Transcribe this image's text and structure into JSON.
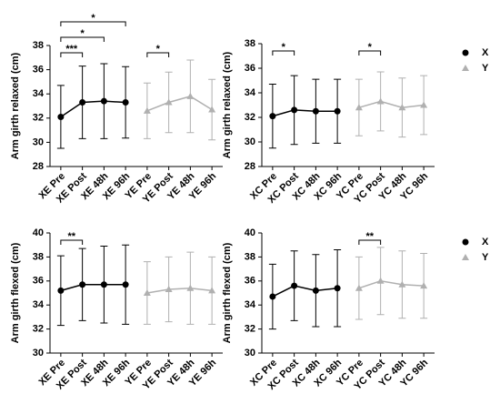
{
  "chart_data": [
    {
      "type": "line",
      "ylabel": "Arm girth relaxed (cm)",
      "categories": [
        "XE Pre",
        "XE Post",
        "XE 48h",
        "XE 96h",
        "YE Pre",
        "YE Post",
        "YE 48h",
        "YE 96h"
      ],
      "ylim": [
        28,
        38
      ],
      "yticks": [
        28,
        30,
        32,
        34,
        36,
        38
      ],
      "series": [
        {
          "name": "X",
          "color": "#000000",
          "marker": "circle",
          "values": [
            32.1,
            33.3,
            33.4,
            33.3,
            null,
            null,
            null,
            null
          ],
          "errors": [
            2.6,
            3.0,
            3.1,
            2.95,
            null,
            null,
            null,
            null
          ]
        },
        {
          "name": "Y",
          "color": "#b0b0b0",
          "marker": "triangle",
          "values": [
            null,
            null,
            null,
            null,
            32.6,
            33.3,
            33.8,
            32.7
          ],
          "errors": [
            null,
            null,
            null,
            null,
            2.3,
            2.5,
            3.0,
            2.5
          ]
        }
      ],
      "annotations": [
        {
          "text": "***",
          "between": [
            "XE Pre",
            "XE Post"
          ]
        },
        {
          "text": "*",
          "between": [
            "XE Pre",
            "XE 48h"
          ]
        },
        {
          "text": "*",
          "between": [
            "XE Pre",
            "XE 96h"
          ]
        },
        {
          "text": "*",
          "between": [
            "YE Pre",
            "YE Post"
          ]
        }
      ],
      "legend": false
    },
    {
      "type": "line",
      "ylabel": "Arm girth relaxed (cm)",
      "categories": [
        "XC Pre",
        "XC Post",
        "XC 48h",
        "XC 96h",
        "YC Pre",
        "YC Post",
        "YC 48h",
        "YC 96h"
      ],
      "ylim": [
        28,
        38
      ],
      "yticks": [
        28,
        30,
        32,
        34,
        36,
        38
      ],
      "series": [
        {
          "name": "X",
          "color": "#000000",
          "marker": "circle",
          "values": [
            32.1,
            32.6,
            32.5,
            32.5,
            null,
            null,
            null,
            null
          ],
          "errors": [
            2.6,
            2.8,
            2.6,
            2.6,
            null,
            null,
            null,
            null
          ]
        },
        {
          "name": "Y",
          "color": "#b0b0b0",
          "marker": "triangle",
          "values": [
            null,
            null,
            null,
            null,
            32.8,
            33.3,
            32.8,
            33.0
          ],
          "errors": [
            null,
            null,
            null,
            null,
            2.3,
            2.4,
            2.4,
            2.4
          ]
        }
      ],
      "annotations": [
        {
          "text": "*",
          "between": [
            "XC Pre",
            "XC Post"
          ]
        },
        {
          "text": "*",
          "between": [
            "YC Pre",
            "YC Post"
          ]
        }
      ],
      "legend": true
    },
    {
      "type": "line",
      "ylabel": "Arm girth flexed (cm)",
      "categories": [
        "XE Pre",
        "XE Post",
        "XE 48h",
        "XE 96h",
        "YE Pre",
        "YE Post",
        "YE 48h",
        "YE 96h"
      ],
      "ylim": [
        30,
        40
      ],
      "yticks": [
        30,
        32,
        34,
        36,
        38,
        40
      ],
      "series": [
        {
          "name": "X",
          "color": "#000000",
          "marker": "circle",
          "values": [
            35.2,
            35.7,
            35.7,
            35.7,
            null,
            null,
            null,
            null
          ],
          "errors": [
            2.9,
            3.0,
            3.2,
            3.3,
            null,
            null,
            null,
            null
          ]
        },
        {
          "name": "Y",
          "color": "#b0b0b0",
          "marker": "triangle",
          "values": [
            null,
            null,
            null,
            null,
            35.0,
            35.3,
            35.4,
            35.2
          ],
          "errors": [
            null,
            null,
            null,
            null,
            2.6,
            2.7,
            3.0,
            2.8
          ]
        }
      ],
      "annotations": [
        {
          "text": "**",
          "between": [
            "XE Pre",
            "XE Post"
          ]
        }
      ],
      "legend": false
    },
    {
      "type": "line",
      "ylabel": "Arm girth flexed (cm)",
      "categories": [
        "XC Pre",
        "XC Post",
        "XC 48h",
        "XC 96h",
        "YC Pre",
        "YC Post",
        "YC 48h",
        "YC 96h"
      ],
      "ylim": [
        30,
        40
      ],
      "yticks": [
        30,
        32,
        34,
        36,
        38,
        40
      ],
      "series": [
        {
          "name": "X",
          "color": "#000000",
          "marker": "circle",
          "values": [
            34.7,
            35.6,
            35.2,
            35.4,
            null,
            null,
            null,
            null
          ],
          "errors": [
            2.7,
            2.9,
            3.0,
            3.2,
            null,
            null,
            null,
            null
          ]
        },
        {
          "name": "Y",
          "color": "#b0b0b0",
          "marker": "triangle",
          "values": [
            null,
            null,
            null,
            null,
            35.4,
            36.0,
            35.7,
            35.6
          ],
          "errors": [
            null,
            null,
            null,
            null,
            2.6,
            2.8,
            2.8,
            2.7
          ]
        }
      ],
      "annotations": [
        {
          "text": "**",
          "between": [
            "YC Pre",
            "YC Post"
          ]
        }
      ],
      "legend": true
    }
  ]
}
